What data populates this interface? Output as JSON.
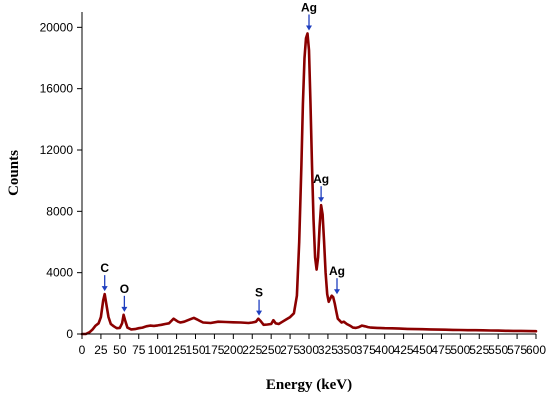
{
  "chart_data": {
    "type": "line",
    "title": "",
    "xlabel": "Energy (keV)",
    "ylabel": "Counts",
    "xlim": [
      0,
      600
    ],
    "ylim": [
      0,
      21000
    ],
    "xticks": [
      0,
      25,
      50,
      75,
      100,
      125,
      150,
      175,
      200,
      225,
      250,
      275,
      300,
      325,
      350,
      375,
      400,
      425,
      450,
      475,
      500,
      525,
      550,
      575,
      600
    ],
    "xtick_labels": [
      "0",
      "25",
      "50",
      "75",
      "100",
      "125",
      "150",
      "175",
      "200",
      "225",
      "250",
      "275",
      "300",
      "325",
      "350",
      "375",
      "400",
      "425",
      "450",
      "475",
      "500",
      "525",
      "550",
      "575",
      "600"
    ],
    "yticks": [
      0,
      4000,
      8000,
      12000,
      16000,
      20000
    ],
    "ytick_labels": [
      "0",
      "4000",
      "8000",
      "12000",
      "16000",
      "20000"
    ],
    "grid": false,
    "legend": "none",
    "line_color": "#8b0000",
    "arrow_color": "#1f3fbf",
    "series": [
      {
        "x": [
          0,
          5,
          10,
          14,
          18,
          22,
          25,
          28,
          30,
          32,
          35,
          38,
          42,
          46,
          50,
          53,
          55,
          57,
          60,
          65,
          70,
          75,
          80,
          85,
          90,
          95,
          100,
          105,
          110,
          115,
          118,
          121,
          124,
          127,
          130,
          135,
          140,
          145,
          148,
          152,
          156,
          160,
          170,
          180,
          190,
          200,
          210,
          220,
          225,
          230,
          233,
          236,
          240,
          245,
          250,
          253,
          256,
          260,
          265,
          270,
          275,
          280,
          284,
          287,
          290,
          292,
          294,
          296,
          298,
          300,
          302,
          304,
          306,
          308,
          310,
          312,
          314,
          316,
          318,
          320,
          322,
          324,
          326,
          328,
          330,
          332,
          334,
          336,
          338,
          340,
          343,
          346,
          350,
          354,
          358,
          362,
          366,
          370,
          374,
          378,
          382,
          390,
          400,
          410,
          420,
          430,
          440,
          450,
          460,
          470,
          480,
          490,
          500,
          510,
          520,
          530,
          540,
          550,
          560,
          570,
          580,
          590,
          600
        ],
        "y": [
          0,
          0,
          120,
          300,
          550,
          700,
          1100,
          2200,
          2600,
          2000,
          1100,
          650,
          500,
          380,
          400,
          700,
          1250,
          900,
          420,
          300,
          320,
          380,
          420,
          500,
          550,
          530,
          560,
          600,
          650,
          700,
          850,
          1000,
          900,
          800,
          750,
          800,
          900,
          1000,
          1050,
          950,
          850,
          750,
          720,
          800,
          780,
          760,
          750,
          720,
          750,
          800,
          1000,
          850,
          600,
          620,
          650,
          900,
          700,
          650,
          800,
          950,
          1100,
          1350,
          2500,
          6000,
          11000,
          15000,
          18000,
          19300,
          19600,
          18500,
          15000,
          11000,
          7500,
          5000,
          4200,
          5000,
          7000,
          8400,
          7800,
          6000,
          4000,
          2600,
          2100,
          2300,
          2500,
          2400,
          2000,
          1500,
          1000,
          900,
          750,
          800,
          650,
          550,
          420,
          400,
          450,
          550,
          500,
          450,
          420,
          400,
          380,
          370,
          350,
          330,
          320,
          310,
          300,
          290,
          280,
          270,
          260,
          250,
          250,
          240,
          230,
          220,
          210,
          200,
          200,
          190,
          180
        ]
      }
    ],
    "annotations": [
      {
        "text": "C",
        "x": 30,
        "y": 2600,
        "side": "left"
      },
      {
        "text": "O",
        "x": 56,
        "y": 1250,
        "side": "left"
      },
      {
        "text": "S",
        "x": 234,
        "y": 1000,
        "side": "left"
      },
      {
        "text": "Ag",
        "x": 300,
        "y": 19600,
        "side": "left"
      },
      {
        "text": "Ag",
        "x": 316,
        "y": 8400,
        "side": "right"
      },
      {
        "text": "Ag",
        "x": 337,
        "y": 2400,
        "side": "right"
      }
    ]
  }
}
